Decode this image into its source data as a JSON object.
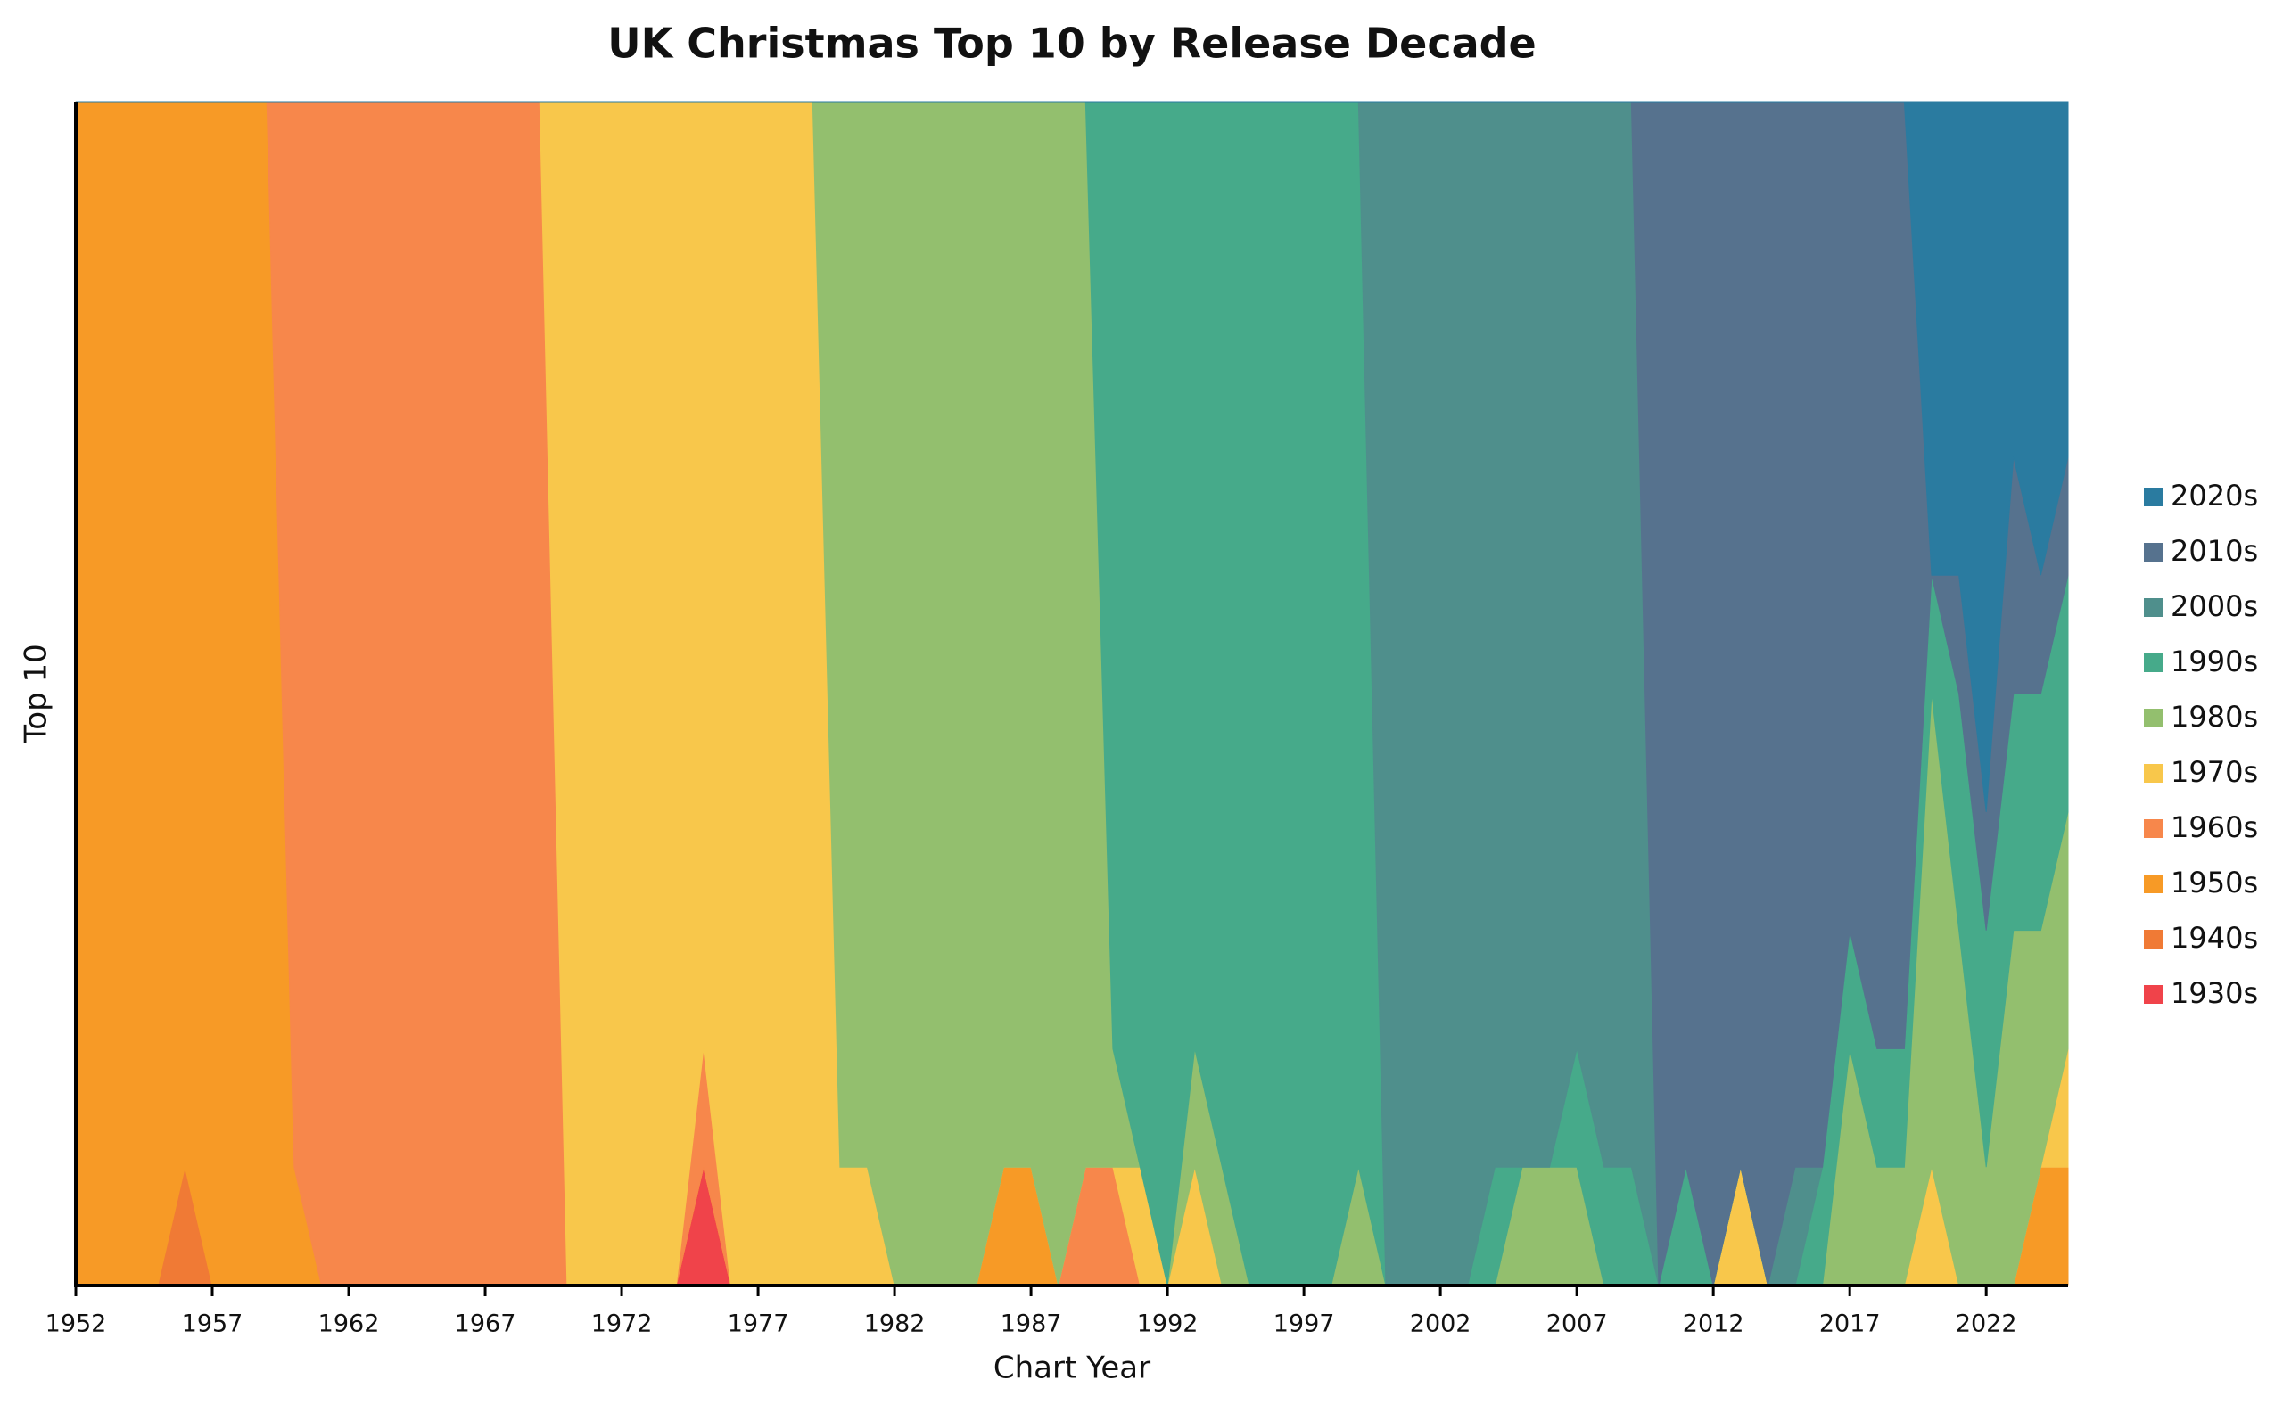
{
  "chart_data": {
    "type": "stacked_area",
    "title": "UK Christmas Top 10 by Release Decade",
    "x_label": "Chart Year",
    "y_label": "Top 10",
    "x": [
      1952,
      1953,
      1954,
      1955,
      1956,
      1957,
      1958,
      1959,
      1960,
      1961,
      1962,
      1963,
      1964,
      1965,
      1966,
      1967,
      1968,
      1969,
      1970,
      1971,
      1972,
      1973,
      1974,
      1975,
      1976,
      1977,
      1978,
      1979,
      1980,
      1981,
      1982,
      1983,
      1984,
      1985,
      1986,
      1987,
      1988,
      1989,
      1990,
      1991,
      1992,
      1993,
      1994,
      1995,
      1996,
      1997,
      1998,
      1999,
      2000,
      2001,
      2002,
      2003,
      2004,
      2005,
      2006,
      2007,
      2008,
      2009,
      2010,
      2011,
      2012,
      2013,
      2014,
      2015,
      2016,
      2017,
      2018,
      2019,
      2020,
      2021,
      2022,
      2023,
      2024,
      2025
    ],
    "xlim": [
      1952,
      2025
    ],
    "xticks": [
      1952,
      1957,
      1962,
      1967,
      1972,
      1977,
      1982,
      1987,
      1992,
      1997,
      2002,
      2007,
      2012,
      2017,
      2022
    ],
    "ylim": [
      0,
      10
    ],
    "legend": "right",
    "series": [
      {
        "name": "1930s",
        "color": "#f0434a",
        "values": [
          0,
          0,
          0,
          0,
          0,
          0,
          0,
          0,
          0,
          0,
          0,
          0,
          0,
          0,
          0,
          0,
          0,
          0,
          0,
          0,
          0,
          0,
          0,
          1,
          0,
          0,
          0,
          0,
          0,
          0,
          0,
          0,
          0,
          0,
          0,
          0,
          0,
          0,
          0,
          0,
          0,
          0,
          0,
          0,
          0,
          0,
          0,
          0,
          0,
          0,
          0,
          0,
          0,
          0,
          0,
          0,
          0,
          0,
          0,
          0,
          0,
          0,
          0,
          0,
          0,
          0,
          0,
          0,
          0,
          0,
          0,
          0,
          0,
          0
        ]
      },
      {
        "name": "1940s",
        "color": "#f07a35",
        "values": [
          0,
          0,
          0,
          0,
          1,
          0,
          0,
          0,
          0,
          0,
          0,
          0,
          0,
          0,
          0,
          0,
          0,
          0,
          0,
          0,
          0,
          0,
          0,
          0,
          0,
          0,
          0,
          0,
          0,
          0,
          0,
          0,
          0,
          0,
          0,
          0,
          0,
          0,
          0,
          0,
          0,
          0,
          0,
          0,
          0,
          0,
          0,
          0,
          0,
          0,
          0,
          0,
          0,
          0,
          0,
          0,
          0,
          0,
          0,
          0,
          0,
          0,
          0,
          0,
          0,
          0,
          0,
          0,
          0,
          0,
          0,
          0,
          0,
          0
        ]
      },
      {
        "name": "1950s",
        "color": "#f79a26",
        "values": [
          10,
          10,
          10,
          10,
          9,
          10,
          10,
          10,
          1,
          0,
          0,
          0,
          0,
          0,
          0,
          0,
          0,
          0,
          0,
          0,
          0,
          0,
          0,
          0,
          0,
          0,
          0,
          0,
          0,
          0,
          0,
          0,
          0,
          0,
          1,
          1,
          0,
          0,
          0,
          0,
          0,
          0,
          0,
          0,
          0,
          0,
          0,
          0,
          0,
          0,
          0,
          0,
          0,
          0,
          0,
          0,
          0,
          0,
          0,
          0,
          0,
          0,
          0,
          0,
          0,
          0,
          0,
          0,
          0,
          0,
          0,
          0,
          1,
          1
        ]
      },
      {
        "name": "1960s",
        "color": "#f7874b",
        "values": [
          0,
          0,
          0,
          0,
          0,
          0,
          0,
          0,
          9,
          10,
          10,
          10,
          10,
          10,
          10,
          10,
          10,
          10,
          0,
          0,
          0,
          0,
          0,
          1,
          0,
          0,
          0,
          0,
          0,
          0,
          0,
          0,
          0,
          0,
          0,
          0,
          0,
          1,
          1,
          0,
          0,
          0,
          0,
          0,
          0,
          0,
          0,
          0,
          0,
          0,
          0,
          0,
          0,
          0,
          0,
          0,
          0,
          0,
          0,
          0,
          0,
          0,
          0,
          0,
          0,
          0,
          0,
          0,
          0,
          0,
          0,
          0,
          0,
          0
        ]
      },
      {
        "name": "1970s",
        "color": "#f8c74b",
        "values": [
          0,
          0,
          0,
          0,
          0,
          0,
          0,
          0,
          0,
          0,
          0,
          0,
          0,
          0,
          0,
          0,
          0,
          0,
          10,
          10,
          10,
          10,
          10,
          8,
          10,
          10,
          10,
          10,
          1,
          1,
          0,
          0,
          0,
          0,
          0,
          0,
          0,
          0,
          0,
          1,
          0,
          1,
          0,
          0,
          0,
          0,
          0,
          0,
          0,
          0,
          0,
          0,
          0,
          0,
          0,
          0,
          0,
          0,
          0,
          0,
          0,
          1,
          0,
          0,
          0,
          0,
          0,
          0,
          1,
          0,
          0,
          0,
          0,
          1
        ]
      },
      {
        "name": "1980s",
        "color": "#93bf6e",
        "values": [
          0,
          0,
          0,
          0,
          0,
          0,
          0,
          0,
          0,
          0,
          0,
          0,
          0,
          0,
          0,
          0,
          0,
          0,
          0,
          0,
          0,
          0,
          0,
          0,
          0,
          0,
          0,
          0,
          9,
          9,
          10,
          10,
          10,
          10,
          9,
          9,
          10,
          9,
          1,
          0,
          0,
          1,
          1,
          0,
          0,
          0,
          0,
          1,
          0,
          0,
          0,
          0,
          0,
          1,
          1,
          1,
          0,
          0,
          0,
          0,
          0,
          0,
          0,
          0,
          0,
          2,
          1,
          1,
          4,
          3,
          1,
          3,
          2,
          2
        ]
      },
      {
        "name": "1990s",
        "color": "#46aa8a",
        "values": [
          0,
          0,
          0,
          0,
          0,
          0,
          0,
          0,
          0,
          0,
          0,
          0,
          0,
          0,
          0,
          0,
          0,
          0,
          0,
          0,
          0,
          0,
          0,
          0,
          0,
          0,
          0,
          0,
          0,
          0,
          0,
          0,
          0,
          0,
          0,
          0,
          0,
          0,
          8,
          9,
          10,
          8,
          9,
          10,
          10,
          10,
          10,
          9,
          0,
          0,
          0,
          0,
          1,
          0,
          0,
          1,
          1,
          1,
          0,
          1,
          0,
          0,
          0,
          0,
          1,
          1,
          1,
          1,
          1,
          2,
          2,
          2,
          2,
          2
        ]
      },
      {
        "name": "2000s",
        "color": "#4f8f8c",
        "values": [
          0,
          0,
          0,
          0,
          0,
          0,
          0,
          0,
          0,
          0,
          0,
          0,
          0,
          0,
          0,
          0,
          0,
          0,
          0,
          0,
          0,
          0,
          0,
          0,
          0,
          0,
          0,
          0,
          0,
          0,
          0,
          0,
          0,
          0,
          0,
          0,
          0,
          0,
          0,
          0,
          0,
          0,
          0,
          0,
          0,
          0,
          0,
          0,
          10,
          10,
          10,
          10,
          9,
          9,
          9,
          8,
          9,
          9,
          0,
          0,
          0,
          0,
          0,
          1,
          0,
          0,
          0,
          0,
          0,
          0,
          0,
          0,
          0,
          0
        ]
      },
      {
        "name": "2010s",
        "color": "#56728e",
        "values": [
          0,
          0,
          0,
          0,
          0,
          0,
          0,
          0,
          0,
          0,
          0,
          0,
          0,
          0,
          0,
          0,
          0,
          0,
          0,
          0,
          0,
          0,
          0,
          0,
          0,
          0,
          0,
          0,
          0,
          0,
          0,
          0,
          0,
          0,
          0,
          0,
          0,
          0,
          0,
          0,
          0,
          0,
          0,
          0,
          0,
          0,
          0,
          0,
          0,
          0,
          0,
          0,
          0,
          0,
          0,
          0,
          0,
          0,
          10,
          9,
          10,
          9,
          10,
          9,
          9,
          7,
          8,
          8,
          0,
          1,
          1,
          2,
          1,
          1
        ]
      },
      {
        "name": "2020s",
        "color": "#2a7ba0",
        "values": [
          0,
          0,
          0,
          0,
          0,
          0,
          0,
          0,
          0,
          0,
          0,
          0,
          0,
          0,
          0,
          0,
          0,
          0,
          0,
          0,
          0,
          0,
          0,
          0,
          0,
          0,
          0,
          0,
          0,
          0,
          0,
          0,
          0,
          0,
          0,
          0,
          0,
          0,
          0,
          0,
          0,
          0,
          0,
          0,
          0,
          0,
          0,
          0,
          0,
          0,
          0,
          0,
          0,
          0,
          0,
          0,
          0,
          0,
          0,
          0,
          0,
          0,
          0,
          0,
          0,
          0,
          0,
          0,
          4,
          4,
          6,
          3,
          4,
          3
        ]
      }
    ]
  }
}
